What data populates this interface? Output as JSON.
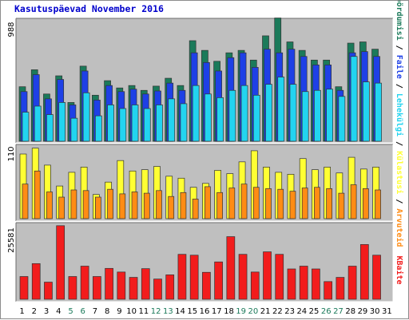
{
  "title": "Kasutuspäevad November 2016",
  "colors": {
    "background": "#bfbfbf",
    "hits": "#1b7a5a",
    "files": "#1e40e6",
    "pages": "#22d4f0",
    "visits": "#ffff33",
    "sites": "#ff8c14",
    "kbytes": "#f21c1c",
    "weekend_day_label": "#1b7a5a",
    "weekday_label": "#000000"
  },
  "chart_data": [
    {
      "type": "bar",
      "name": "top",
      "ymax_label": "988",
      "ylim": [
        0,
        988
      ],
      "series": [
        {
          "name": "Pöördumisi",
          "color": "#1b7a5a",
          "values": [
            450,
            590,
            390,
            540,
            320,
            620,
            380,
            500,
            440,
            460,
            420,
            455,
            520,
            460,
            830,
            750,
            660,
            730,
            750,
            670,
            870,
            1020,
            820,
            750,
            670,
            670,
            450,
            810,
            820,
            760
          ]
        },
        {
          "name": "Faile",
          "color": "#1e40e6",
          "values": [
            410,
            550,
            350,
            510,
            300,
            580,
            340,
            460,
            410,
            430,
            390,
            415,
            480,
            420,
            730,
            650,
            580,
            690,
            730,
            610,
            760,
            730,
            760,
            700,
            630,
            630,
            420,
            730,
            740,
            700
          ]
        },
        {
          "name": "Lehekülgi",
          "color": "#22d4f0",
          "values": [
            240,
            290,
            220,
            320,
            190,
            400,
            210,
            300,
            270,
            300,
            270,
            300,
            350,
            310,
            460,
            390,
            360,
            420,
            460,
            380,
            470,
            530,
            470,
            410,
            420,
            430,
            370,
            700,
            490,
            480
          ]
        }
      ]
    },
    {
      "type": "bar",
      "name": "middle",
      "ymax_label": "110",
      "ylim": [
        0,
        110
      ],
      "series": [
        {
          "name": "Külastusi",
          "color": "#ffff33",
          "values": [
            99,
            108,
            82,
            50,
            71,
            79,
            37,
            56,
            89,
            73,
            75,
            80,
            65,
            62,
            48,
            54,
            74,
            69,
            87,
            104,
            79,
            71,
            68,
            92,
            75,
            79,
            70,
            94,
            76,
            79
          ]
        },
        {
          "name": "Arvuteid",
          "color": "#ff8c14",
          "values": [
            53,
            73,
            41,
            33,
            44,
            43,
            33,
            45,
            38,
            41,
            39,
            43,
            34,
            40,
            30,
            49,
            40,
            47,
            53,
            48,
            46,
            45,
            42,
            47,
            48,
            46,
            39,
            52,
            46,
            44
          ]
        }
      ]
    },
    {
      "type": "bar",
      "name": "bottom",
      "ymax_label": "25581",
      "ylim": [
        0,
        25581
      ],
      "series": [
        {
          "name": "KBaite",
          "color": "#f21c1c",
          "values": [
            8100,
            12700,
            6100,
            26200,
            8100,
            11800,
            8100,
            11000,
            9700,
            7800,
            10900,
            7200,
            8700,
            16000,
            15700,
            9600,
            13300,
            22300,
            16000,
            9700,
            16900,
            16000,
            10800,
            11800,
            10800,
            6300,
            7800,
            11800,
            19500,
            15700
          ]
        }
      ]
    }
  ],
  "x_labels": [
    "1",
    "2",
    "3",
    "4",
    "5",
    "6",
    "7",
    "8",
    "9",
    "10",
    "11",
    "12",
    "13",
    "14",
    "15",
    "16",
    "17",
    "18",
    "19",
    "20",
    "21",
    "22",
    "23",
    "24",
    "25",
    "26",
    "27",
    "28",
    "29",
    "30",
    "31"
  ],
  "weekend_days": [
    5,
    6,
    12,
    13,
    19,
    20,
    26,
    27
  ],
  "right_labels": {
    "top": [
      {
        "text": "Pöördumisi",
        "color": "#1b7a5a"
      },
      {
        "text": " / ",
        "color": "#000000"
      },
      {
        "text": "Faile",
        "color": "#1e40e6"
      },
      {
        "text": " / ",
        "color": "#000000"
      },
      {
        "text": "Lehekülgi",
        "color": "#22d4f0"
      },
      {
        "text": " / ",
        "color": "#000000"
      },
      {
        "text": "Külastusi",
        "color": "#ffff33"
      },
      {
        "text": " / ",
        "color": "#000000"
      },
      {
        "text": "Arvuteid",
        "color": "#ff8c14"
      }
    ],
    "bottom": [
      {
        "text": "KBaite",
        "color": "#f21c1c"
      }
    ]
  }
}
